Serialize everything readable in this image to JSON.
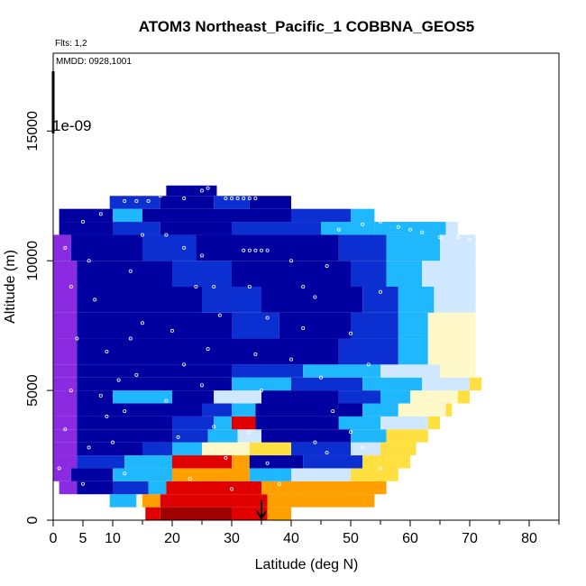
{
  "chart_data": {
    "type": "heatmap",
    "title": "ATOM3 Northeast_Pacific_1 COBBNA_GEOS5",
    "flights_label": "Flts: 1,2",
    "dates_label": "MMDD: 0928,1001",
    "xlabel": "Latitude (deg N)",
    "ylabel": "Altitude (m)",
    "xlim": [
      0,
      85
    ],
    "ylim": [
      0,
      18000
    ],
    "x_ticks": [
      0,
      5,
      10,
      20,
      30,
      40,
      50,
      60,
      70,
      80
    ],
    "y_ticks": [
      0,
      5000,
      10000,
      15000
    ],
    "scale_annotation": "1e-09",
    "arrow_latitude": 35,
    "colors": {
      "violet": "#8a2be2",
      "navy": "#0000a0",
      "blue": "#0b2fd0",
      "sky": "#1fb8ff",
      "pale": "#cfe8ff",
      "cream": "#fff8c8",
      "yellow": "#ffe040",
      "orange": "#ffa000",
      "red": "#e00000",
      "darkred": "#a00000"
    },
    "bands": [
      {
        "z": [
          0,
          500
        ],
        "segments": [
          [
            15.5,
            18,
            "red"
          ],
          [
            18,
            30,
            "darkred"
          ],
          [
            30,
            36,
            "red"
          ],
          [
            36,
            40,
            "orange"
          ]
        ]
      },
      {
        "z": [
          500,
          1000
        ],
        "segments": [
          [
            9.5,
            14,
            "sky"
          ],
          [
            14,
            15,
            "cream"
          ],
          [
            15,
            18,
            "orange"
          ],
          [
            18,
            30,
            "red"
          ],
          [
            30,
            36,
            "red"
          ],
          [
            36,
            50,
            "orange"
          ],
          [
            50,
            54,
            "orange"
          ]
        ]
      },
      {
        "z": [
          1000,
          1500
        ],
        "segments": [
          [
            1,
            4,
            "violet"
          ],
          [
            4,
            10,
            "navy"
          ],
          [
            10,
            16,
            "blue"
          ],
          [
            16,
            19,
            "sky"
          ],
          [
            19,
            35,
            "red"
          ],
          [
            35,
            50,
            "orange"
          ],
          [
            50,
            56,
            "orange"
          ]
        ]
      },
      {
        "z": [
          1500,
          2000
        ],
        "segments": [
          [
            0,
            3,
            "violet"
          ],
          [
            3,
            10,
            "navy"
          ],
          [
            10,
            20,
            "sky"
          ],
          [
            20,
            33,
            "orange"
          ],
          [
            33,
            40,
            "sky"
          ],
          [
            40,
            50,
            "pale"
          ],
          [
            50,
            58,
            "yellow"
          ]
        ]
      },
      {
        "z": [
          2000,
          2500
        ],
        "segments": [
          [
            0,
            4,
            "violet"
          ],
          [
            4,
            12,
            "blue"
          ],
          [
            12,
            20,
            "sky"
          ],
          [
            20,
            30,
            "red"
          ],
          [
            30,
            33,
            "orange"
          ],
          [
            33,
            42,
            "navy"
          ],
          [
            42,
            52,
            "blue"
          ],
          [
            52,
            58,
            "yellow"
          ],
          [
            58,
            60,
            "yellow"
          ]
        ]
      },
      {
        "z": [
          2500,
          3000
        ],
        "segments": [
          [
            0,
            4,
            "violet"
          ],
          [
            4,
            15,
            "navy"
          ],
          [
            15,
            20,
            "blue"
          ],
          [
            20,
            25,
            "sky"
          ],
          [
            25,
            33,
            "cream"
          ],
          [
            33,
            40,
            "yellow"
          ],
          [
            40,
            50,
            "blue"
          ],
          [
            50,
            55,
            "pale"
          ],
          [
            55,
            61,
            "yellow"
          ]
        ]
      },
      {
        "z": [
          3000,
          3500
        ],
        "segments": [
          [
            0,
            4,
            "violet"
          ],
          [
            4,
            20,
            "navy"
          ],
          [
            20,
            26,
            "blue"
          ],
          [
            26,
            31,
            "sky"
          ],
          [
            31,
            35,
            "pale"
          ],
          [
            35,
            50,
            "navy"
          ],
          [
            50,
            56,
            "sky"
          ],
          [
            56,
            63,
            "yellow"
          ]
        ]
      },
      {
        "z": [
          3500,
          4000
        ],
        "segments": [
          [
            0,
            4,
            "violet"
          ],
          [
            4,
            20,
            "navy"
          ],
          [
            20,
            27,
            "blue"
          ],
          [
            27,
            30,
            "sky"
          ],
          [
            30,
            34,
            "red"
          ],
          [
            34,
            48,
            "navy"
          ],
          [
            48,
            55,
            "sky"
          ],
          [
            55,
            63,
            "pale"
          ],
          [
            63,
            65,
            "yellow"
          ]
        ]
      },
      {
        "z": [
          4000,
          4500
        ],
        "segments": [
          [
            0,
            4,
            "violet"
          ],
          [
            4,
            25,
            "navy"
          ],
          [
            25,
            30,
            "blue"
          ],
          [
            30,
            34,
            "sky"
          ],
          [
            34,
            52,
            "navy"
          ],
          [
            52,
            58,
            "sky"
          ],
          [
            58,
            66,
            "cream"
          ],
          [
            66,
            67,
            "yellow"
          ]
        ]
      },
      {
        "z": [
          4500,
          5000
        ],
        "segments": [
          [
            0,
            4,
            "violet"
          ],
          [
            4,
            10,
            "navy"
          ],
          [
            10,
            20,
            "sky"
          ],
          [
            20,
            27,
            "navy"
          ],
          [
            27,
            35,
            "pale"
          ],
          [
            35,
            48,
            "navy"
          ],
          [
            48,
            55,
            "blue"
          ],
          [
            55,
            60,
            "sky"
          ],
          [
            60,
            68,
            "cream"
          ],
          [
            68,
            70,
            "yellow"
          ]
        ]
      },
      {
        "z": [
          5000,
          5500
        ],
        "segments": [
          [
            0,
            4,
            "violet"
          ],
          [
            4,
            30,
            "navy"
          ],
          [
            30,
            40,
            "sky"
          ],
          [
            40,
            52,
            "blue"
          ],
          [
            52,
            62,
            "sky"
          ],
          [
            62,
            70,
            "pale"
          ],
          [
            70,
            72,
            "yellow"
          ]
        ]
      },
      {
        "z": [
          5500,
          6000
        ],
        "segments": [
          [
            0,
            4,
            "violet"
          ],
          [
            4,
            30,
            "navy"
          ],
          [
            30,
            42,
            "blue"
          ],
          [
            42,
            55,
            "sky"
          ],
          [
            55,
            65,
            "pale"
          ],
          [
            65,
            71,
            "cream"
          ]
        ]
      },
      {
        "z": [
          6000,
          7000
        ],
        "segments": [
          [
            0,
            4,
            "violet"
          ],
          [
            4,
            48,
            "navy"
          ],
          [
            48,
            58,
            "blue"
          ],
          [
            58,
            63,
            "sky"
          ],
          [
            63,
            71,
            "cream"
          ]
        ]
      },
      {
        "z": [
          7000,
          8000
        ],
        "segments": [
          [
            0,
            4,
            "violet"
          ],
          [
            4,
            30,
            "navy"
          ],
          [
            30,
            38,
            "blue"
          ],
          [
            38,
            50,
            "navy"
          ],
          [
            50,
            58,
            "blue"
          ],
          [
            58,
            63,
            "sky"
          ],
          [
            63,
            71,
            "cream"
          ]
        ]
      },
      {
        "z": [
          8000,
          9000
        ],
        "segments": [
          [
            0,
            4,
            "violet"
          ],
          [
            4,
            25,
            "navy"
          ],
          [
            25,
            35,
            "blue"
          ],
          [
            35,
            52,
            "navy"
          ],
          [
            52,
            58,
            "blue"
          ],
          [
            58,
            64,
            "sky"
          ],
          [
            64,
            71,
            "pale"
          ]
        ]
      },
      {
        "z": [
          9000,
          10000
        ],
        "segments": [
          [
            0,
            4,
            "violet"
          ],
          [
            4,
            20,
            "navy"
          ],
          [
            20,
            30,
            "blue"
          ],
          [
            30,
            50,
            "navy"
          ],
          [
            50,
            56,
            "blue"
          ],
          [
            56,
            62,
            "sky"
          ],
          [
            62,
            71,
            "pale"
          ]
        ]
      },
      {
        "z": [
          10000,
          11000
        ],
        "segments": [
          [
            0,
            3,
            "violet"
          ],
          [
            3,
            15,
            "navy"
          ],
          [
            15,
            24,
            "blue"
          ],
          [
            24,
            48,
            "navy"
          ],
          [
            48,
            56,
            "blue"
          ],
          [
            56,
            65,
            "sky"
          ],
          [
            65,
            71,
            "pale"
          ]
        ]
      },
      {
        "z": [
          11000,
          11500
        ],
        "segments": [
          [
            1,
            10,
            "navy"
          ],
          [
            10,
            18,
            "blue"
          ],
          [
            18,
            30,
            "navy"
          ],
          [
            30,
            45,
            "blue"
          ],
          [
            45,
            54,
            "sky"
          ],
          [
            54,
            66,
            "sky"
          ],
          [
            66,
            68,
            "pale"
          ]
        ]
      },
      {
        "z": [
          11500,
          12000
        ],
        "segments": [
          [
            1,
            10,
            "navy"
          ],
          [
            10,
            15,
            "sky"
          ],
          [
            15,
            40,
            "navy"
          ],
          [
            40,
            50,
            "blue"
          ],
          [
            50,
            54,
            "sky"
          ]
        ]
      },
      {
        "z": [
          12000,
          12500
        ],
        "segments": [
          [
            9.5,
            18,
            "blue"
          ],
          [
            18,
            27,
            "navy"
          ],
          [
            27,
            33,
            "blue"
          ],
          [
            33,
            40,
            "navy"
          ]
        ]
      },
      {
        "z": [
          12500,
          12900
        ],
        "segments": [
          [
            19,
            27.5,
            "navy"
          ]
        ]
      }
    ],
    "points": [
      [
        1,
        2000
      ],
      [
        2,
        3500
      ],
      [
        3,
        5000
      ],
      [
        4,
        7000
      ],
      [
        3,
        9000
      ],
      [
        2,
        10500
      ],
      [
        5,
        11500
      ],
      [
        8,
        11800
      ],
      [
        6,
        10000
      ],
      [
        7,
        8500
      ],
      [
        9,
        6500
      ],
      [
        8,
        4800
      ],
      [
        10,
        3000
      ],
      [
        12,
        1800
      ],
      [
        12,
        4200
      ],
      [
        14,
        5600
      ],
      [
        15,
        7600
      ],
      [
        13,
        9600
      ],
      [
        15,
        11000
      ],
      [
        12,
        12300
      ],
      [
        14,
        12300
      ],
      [
        16,
        12300
      ],
      [
        18,
        12500
      ],
      [
        22,
        12400
      ],
      [
        25,
        12700
      ],
      [
        26,
        12800
      ],
      [
        29,
        12400
      ],
      [
        30,
        12400
      ],
      [
        31,
        12400
      ],
      [
        32,
        12400
      ],
      [
        33,
        12400
      ],
      [
        34,
        12400
      ],
      [
        19,
        11000
      ],
      [
        22,
        10500
      ],
      [
        24,
        9000
      ],
      [
        20,
        7300
      ],
      [
        22,
        6000
      ],
      [
        19,
        4600
      ],
      [
        21,
        3200
      ],
      [
        23,
        1600
      ],
      [
        25,
        10200
      ],
      [
        27,
        9000
      ],
      [
        28,
        7900
      ],
      [
        26,
        6600
      ],
      [
        25,
        5200
      ],
      [
        27,
        3600
      ],
      [
        29,
        2400
      ],
      [
        30,
        1200
      ],
      [
        32,
        10400
      ],
      [
        33,
        10400
      ],
      [
        34,
        10400
      ],
      [
        35,
        10400
      ],
      [
        36,
        10400
      ],
      [
        33,
        9000
      ],
      [
        36,
        7800
      ],
      [
        34,
        6400
      ],
      [
        35,
        5000
      ],
      [
        33,
        3400
      ],
      [
        36,
        2200
      ],
      [
        38,
        1400
      ],
      [
        40,
        6200
      ],
      [
        42,
        7400
      ],
      [
        44,
        8600
      ],
      [
        46,
        9800
      ],
      [
        45,
        5500
      ],
      [
        47,
        4200
      ],
      [
        50,
        3400
      ],
      [
        52,
        2800
      ],
      [
        55,
        2000
      ],
      [
        48,
        11200
      ],
      [
        55,
        11500
      ],
      [
        60,
        11200
      ],
      [
        65,
        10900
      ],
      [
        68,
        10900
      ],
      [
        70,
        10800
      ],
      [
        62,
        11100
      ],
      [
        58,
        11300
      ],
      [
        52,
        11400
      ],
      [
        40,
        10000
      ],
      [
        42,
        9000
      ],
      [
        44,
        3000
      ],
      [
        46,
        2600
      ],
      [
        50,
        7200
      ],
      [
        53,
        6000
      ],
      [
        55,
        8800
      ],
      [
        5,
        1400
      ],
      [
        6,
        2800
      ],
      [
        9,
        4000
      ],
      [
        11,
        5400
      ],
      [
        13,
        7000
      ]
    ]
  }
}
